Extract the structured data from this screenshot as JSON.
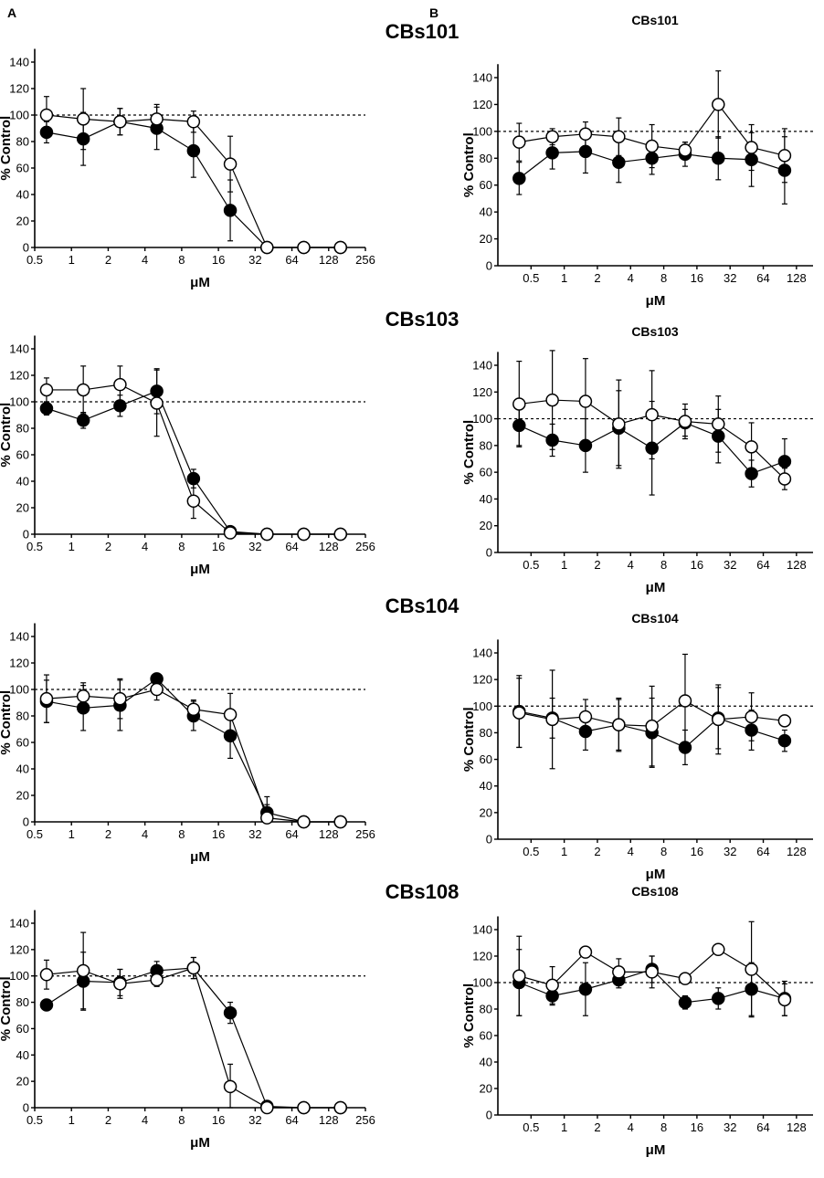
{
  "panel_labels": {
    "a": "A",
    "b": "B"
  },
  "series_names": {
    "filled": "filled circles",
    "open": "open circles"
  },
  "chart_data": [
    {
      "type": "line",
      "panel": "A",
      "title": "CBs101",
      "xlabel": "μM",
      "ylabel": "% Control",
      "x_scale": "log2",
      "xlim": [
        0.5,
        256
      ],
      "ylim": [
        0,
        150
      ],
      "x_ticks": [
        0.5,
        1,
        2,
        4,
        8,
        16,
        32,
        64,
        128,
        256
      ],
      "x_tick_labels": [
        "0.5",
        "1",
        "2",
        "4",
        "8",
        "16",
        "32",
        "64",
        "128",
        "256"
      ],
      "y_ticks": [
        0,
        20,
        40,
        60,
        80,
        100,
        120,
        140
      ],
      "y_tick_labels": [
        "0",
        "20",
        "40",
        "60",
        "80",
        "100",
        "120",
        "140"
      ],
      "reference_line": 100,
      "series": [
        {
          "name": "filled",
          "marker": "filled",
          "x": [
            0.625,
            1.25,
            2.5,
            5,
            10,
            20,
            40,
            80,
            160
          ],
          "y": [
            87,
            82,
            95,
            90,
            73,
            28,
            0,
            0,
            0
          ],
          "err": [
            8,
            20,
            10,
            16,
            20,
            23,
            0,
            0,
            2
          ]
        },
        {
          "name": "open",
          "marker": "open",
          "x": [
            0.625,
            1.25,
            2.5,
            5,
            10,
            20,
            40,
            80,
            160
          ],
          "y": [
            100,
            97,
            95,
            97,
            95,
            63,
            0,
            0,
            0
          ],
          "err": [
            14,
            23,
            10,
            11,
            8,
            21,
            0,
            0,
            2
          ]
        }
      ]
    },
    {
      "type": "line",
      "panel": "A",
      "title": "CBs103",
      "xlabel": "μM",
      "ylabel": "% Control",
      "x_scale": "log2",
      "xlim": [
        0.5,
        256
      ],
      "ylim": [
        0,
        150
      ],
      "x_ticks": [
        0.5,
        1,
        2,
        4,
        8,
        16,
        32,
        64,
        128,
        256
      ],
      "x_tick_labels": [
        "0.5",
        "1",
        "2",
        "4",
        "8",
        "16",
        "32",
        "64",
        "128",
        "256"
      ],
      "y_ticks": [
        0,
        20,
        40,
        60,
        80,
        100,
        120,
        140
      ],
      "y_tick_labels": [
        "0",
        "20",
        "40",
        "60",
        "80",
        "100",
        "120",
        "140"
      ],
      "reference_line": 100,
      "series": [
        {
          "name": "filled",
          "marker": "filled",
          "x": [
            0.625,
            1.25,
            2.5,
            5,
            10,
            20,
            40,
            80,
            160
          ],
          "y": [
            95,
            86,
            97,
            108,
            42,
            2,
            0,
            0,
            0
          ],
          "err": [
            5,
            6,
            8,
            17,
            7,
            2,
            0,
            0,
            0
          ]
        },
        {
          "name": "open",
          "marker": "open",
          "x": [
            0.625,
            1.25,
            2.5,
            5,
            10,
            20,
            40,
            80,
            160
          ],
          "y": [
            109,
            109,
            113,
            99,
            25,
            1,
            0,
            0,
            0
          ],
          "err": [
            9,
            18,
            14,
            25,
            13,
            3,
            0,
            0,
            0
          ]
        }
      ]
    },
    {
      "type": "line",
      "panel": "A",
      "title": "CBs104",
      "xlabel": "μM",
      "ylabel": "% Control",
      "x_scale": "log2",
      "xlim": [
        0.5,
        256
      ],
      "ylim": [
        0,
        150
      ],
      "x_ticks": [
        0.5,
        1,
        2,
        4,
        8,
        16,
        32,
        64,
        128,
        256
      ],
      "x_tick_labels": [
        "0.5",
        "1",
        "2",
        "4",
        "8",
        "16",
        "32",
        "64",
        "128",
        "256"
      ],
      "y_ticks": [
        0,
        20,
        40,
        60,
        80,
        100,
        120,
        140
      ],
      "y_tick_labels": [
        "0",
        "20",
        "40",
        "60",
        "80",
        "100",
        "120",
        "140"
      ],
      "reference_line": 100,
      "series": [
        {
          "name": "filled",
          "marker": "filled",
          "x": [
            0.625,
            1.25,
            2.5,
            5,
            10,
            20,
            40,
            80,
            160
          ],
          "y": [
            91,
            86,
            88,
            108,
            80,
            65,
            7,
            0,
            0
          ],
          "err": [
            16,
            17,
            19,
            3,
            11,
            17,
            12,
            0,
            0
          ]
        },
        {
          "name": "open",
          "marker": "open",
          "x": [
            0.625,
            1.25,
            2.5,
            5,
            10,
            20,
            40,
            80,
            160
          ],
          "y": [
            93,
            95,
            93,
            100,
            85,
            81,
            3,
            0,
            0
          ],
          "err": [
            18,
            10,
            15,
            8,
            7,
            16,
            10,
            0,
            0
          ]
        }
      ]
    },
    {
      "type": "line",
      "panel": "A",
      "title": "CBs108",
      "xlabel": "μM",
      "ylabel": "% Control",
      "x_scale": "log2",
      "xlim": [
        0.5,
        256
      ],
      "ylim": [
        0,
        150
      ],
      "x_ticks": [
        0.5,
        1,
        2,
        4,
        8,
        16,
        32,
        64,
        128,
        256
      ],
      "x_tick_labels": [
        "0.5",
        "1",
        "2",
        "4",
        "8",
        "16",
        "32",
        "64",
        "128",
        "256"
      ],
      "y_ticks": [
        0,
        20,
        40,
        60,
        80,
        100,
        120,
        140
      ],
      "y_tick_labels": [
        "0",
        "20",
        "40",
        "60",
        "80",
        "100",
        "120",
        "140"
      ],
      "reference_line": 100,
      "series": [
        {
          "name": "filled",
          "marker": "filled",
          "x": [
            0.625,
            1.25,
            2.5,
            5,
            10,
            20,
            40,
            80,
            160
          ],
          "y": [
            78,
            96,
            95,
            104,
            106,
            72,
            1,
            0,
            0
          ],
          "err": [
            4,
            22,
            10,
            7,
            8,
            8,
            2,
            2,
            2
          ]
        },
        {
          "name": "open",
          "marker": "open",
          "x": [
            0.625,
            1.25,
            2.5,
            5,
            10,
            20,
            40,
            80,
            160
          ],
          "y": [
            101,
            104,
            94,
            97,
            106,
            16,
            0,
            0,
            0
          ],
          "err": [
            11,
            29,
            11,
            5,
            8,
            17,
            0,
            0,
            0
          ]
        }
      ]
    },
    {
      "type": "line",
      "panel": "B",
      "title": "CBs101",
      "xlabel": "μM",
      "ylabel": "% Control",
      "x_scale": "log2",
      "xlim": [
        0.25,
        181
      ],
      "ylim": [
        0,
        150
      ],
      "x_ticks": [
        0.5,
        1,
        2,
        4,
        8,
        16,
        32,
        64,
        128
      ],
      "x_tick_labels": [
        "0.5",
        "1",
        "2",
        "4",
        "8",
        "16",
        "32",
        "64",
        "128"
      ],
      "y_ticks": [
        0,
        20,
        40,
        60,
        80,
        100,
        120,
        140
      ],
      "y_tick_labels": [
        "0",
        "20",
        "40",
        "60",
        "80",
        "100",
        "120",
        "140"
      ],
      "reference_line": 100,
      "series": [
        {
          "name": "filled",
          "marker": "filled",
          "x": [
            0.39,
            0.78,
            1.56,
            3.125,
            6.25,
            12.5,
            25,
            50,
            100
          ],
          "y": [
            65,
            84,
            85,
            77,
            80,
            83,
            80,
            79,
            71
          ],
          "err": [
            12,
            12,
            16,
            15,
            12,
            9,
            16,
            20,
            25
          ]
        },
        {
          "name": "open",
          "marker": "open",
          "x": [
            0.39,
            0.78,
            1.56,
            3.125,
            6.25,
            12.5,
            25,
            50,
            100
          ],
          "y": [
            92,
            96,
            98,
            96,
            89,
            86,
            120,
            88,
            82
          ],
          "err": [
            14,
            6,
            9,
            14,
            16,
            6,
            25,
            17,
            20
          ]
        }
      ]
    },
    {
      "type": "line",
      "panel": "B",
      "title": "CBs103",
      "xlabel": "μM",
      "ylabel": "% Control",
      "x_scale": "log2",
      "xlim": [
        0.25,
        181
      ],
      "ylim": [
        0,
        150
      ],
      "x_ticks": [
        0.5,
        1,
        2,
        4,
        8,
        16,
        32,
        64,
        128
      ],
      "x_tick_labels": [
        "0.5",
        "1",
        "2",
        "4",
        "8",
        "16",
        "32",
        "64",
        "128"
      ],
      "y_ticks": [
        0,
        20,
        40,
        60,
        80,
        100,
        120,
        140
      ],
      "y_tick_labels": [
        "0",
        "20",
        "40",
        "60",
        "80",
        "100",
        "120",
        "140"
      ],
      "reference_line": 100,
      "series": [
        {
          "name": "filled",
          "marker": "filled",
          "x": [
            0.39,
            0.78,
            1.56,
            3.125,
            6.25,
            12.5,
            25,
            50,
            100
          ],
          "y": [
            95,
            84,
            80,
            93,
            78,
            97,
            87,
            59,
            68
          ],
          "err": [
            15,
            12,
            20,
            28,
            35,
            10,
            20,
            10,
            17
          ]
        },
        {
          "name": "open",
          "marker": "open",
          "x": [
            0.39,
            0.78,
            1.56,
            3.125,
            6.25,
            12.5,
            25,
            50,
            100
          ],
          "y": [
            111,
            114,
            113,
            96,
            103,
            98,
            96,
            79,
            55
          ],
          "err": [
            32,
            37,
            32,
            33,
            33,
            13,
            21,
            18,
            8
          ]
        }
      ]
    },
    {
      "type": "line",
      "panel": "B",
      "title": "CBs104",
      "xlabel": "μM",
      "ylabel": "% Control",
      "x_scale": "log2",
      "xlim": [
        0.25,
        181
      ],
      "ylim": [
        0,
        150
      ],
      "x_ticks": [
        0.5,
        1,
        2,
        4,
        8,
        16,
        32,
        64,
        128
      ],
      "x_tick_labels": [
        "0.5",
        "1",
        "2",
        "4",
        "8",
        "16",
        "32",
        "64",
        "128"
      ],
      "y_ticks": [
        0,
        20,
        40,
        60,
        80,
        100,
        120,
        140
      ],
      "y_tick_labels": [
        "0",
        "20",
        "40",
        "60",
        "80",
        "100",
        "120",
        "140"
      ],
      "reference_line": 100,
      "series": [
        {
          "name": "filled",
          "marker": "filled",
          "x": [
            0.39,
            0.78,
            1.56,
            3.125,
            6.25,
            12.5,
            25,
            50,
            100
          ],
          "y": [
            96,
            91,
            81,
            86,
            80,
            69,
            91,
            82,
            74
          ],
          "err": [
            27,
            15,
            14,
            20,
            26,
            13,
            23,
            15,
            8
          ]
        },
        {
          "name": "open",
          "marker": "open",
          "x": [
            0.39,
            0.78,
            1.56,
            3.125,
            6.25,
            12.5,
            25,
            50,
            100
          ],
          "y": [
            95,
            90,
            92,
            86,
            85,
            104,
            90,
            92,
            89
          ],
          "err": [
            26,
            37,
            13,
            19,
            30,
            35,
            26,
            18,
            4
          ]
        }
      ]
    },
    {
      "type": "line",
      "panel": "B",
      "title": "CBs108",
      "xlabel": "μM",
      "ylabel": "% Control",
      "x_scale": "log2",
      "xlim": [
        0.25,
        181
      ],
      "ylim": [
        0,
        150
      ],
      "x_ticks": [
        0.5,
        1,
        2,
        4,
        8,
        16,
        32,
        64,
        128
      ],
      "x_tick_labels": [
        "0.5",
        "1",
        "2",
        "4",
        "8",
        "16",
        "32",
        "64",
        "128"
      ],
      "y_ticks": [
        0,
        20,
        40,
        60,
        80,
        100,
        120,
        140
      ],
      "y_tick_labels": [
        "0",
        "20",
        "40",
        "60",
        "80",
        "100",
        "120",
        "140"
      ],
      "reference_line": 100,
      "series": [
        {
          "name": "filled",
          "marker": "filled",
          "x": [
            0.39,
            0.78,
            1.56,
            3.125,
            6.25,
            12.5,
            25,
            50,
            100
          ],
          "y": [
            100,
            90,
            95,
            102,
            110,
            85,
            88,
            95,
            88
          ],
          "err": [
            25,
            7,
            20,
            6,
            10,
            5,
            8,
            20,
            13
          ]
        },
        {
          "name": "open",
          "marker": "open",
          "x": [
            0.39,
            0.78,
            1.56,
            3.125,
            6.25,
            12.5,
            25,
            50,
            100
          ],
          "y": [
            105,
            98,
            123,
            108,
            108,
            103,
            125,
            110,
            87
          ],
          "err": [
            30,
            14,
            4,
            10,
            12,
            4,
            4,
            36,
            12
          ]
        }
      ]
    }
  ]
}
